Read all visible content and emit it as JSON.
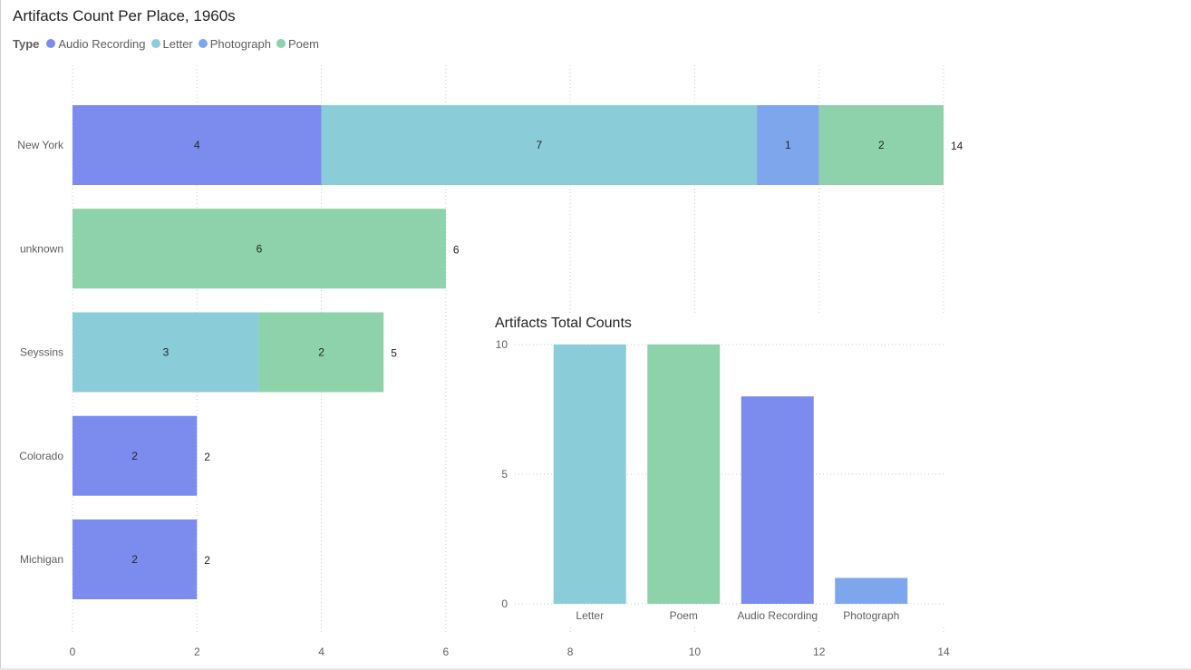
{
  "colors": {
    "Audio Recording": "#7b8cee",
    "Letter": "#8acdd8",
    "Photograph": "#7ea6ec",
    "Poem": "#8dd2aa",
    "gridline": "#c8c8c8",
    "axis_text": "#605e5c",
    "label_text": "#252423"
  },
  "chart_data": [
    {
      "type": "bar",
      "orientation": "horizontal",
      "stacked": true,
      "title": "Artifacts Count Per Place, 1960s",
      "legend_title": "Type",
      "legend": [
        "Audio Recording",
        "Letter",
        "Photograph",
        "Poem"
      ],
      "categories": [
        "New York",
        "unknown",
        "Seyssins",
        "Colorado",
        "Michigan"
      ],
      "series": [
        {
          "name": "Audio Recording",
          "values": [
            4,
            0,
            0,
            2,
            2
          ]
        },
        {
          "name": "Letter",
          "values": [
            7,
            0,
            3,
            0,
            0
          ]
        },
        {
          "name": "Photograph",
          "values": [
            1,
            0,
            0,
            0,
            0
          ]
        },
        {
          "name": "Poem",
          "values": [
            2,
            6,
            2,
            0,
            0
          ]
        }
      ],
      "totals": [
        14,
        6,
        5,
        2,
        2
      ],
      "xlim": [
        0,
        14
      ],
      "xticks": [
        "0",
        "2",
        "4",
        "6",
        "8",
        "10",
        "12",
        "14"
      ],
      "grid": true
    },
    {
      "type": "bar",
      "orientation": "vertical",
      "title": "Artifacts Total Counts",
      "categories": [
        "Letter",
        "Poem",
        "Audio Recording",
        "Photograph"
      ],
      "values": [
        10,
        10,
        8,
        1
      ],
      "ylim": [
        0,
        10
      ],
      "yticks": [
        "0",
        "5",
        "10"
      ],
      "grid": true
    }
  ]
}
